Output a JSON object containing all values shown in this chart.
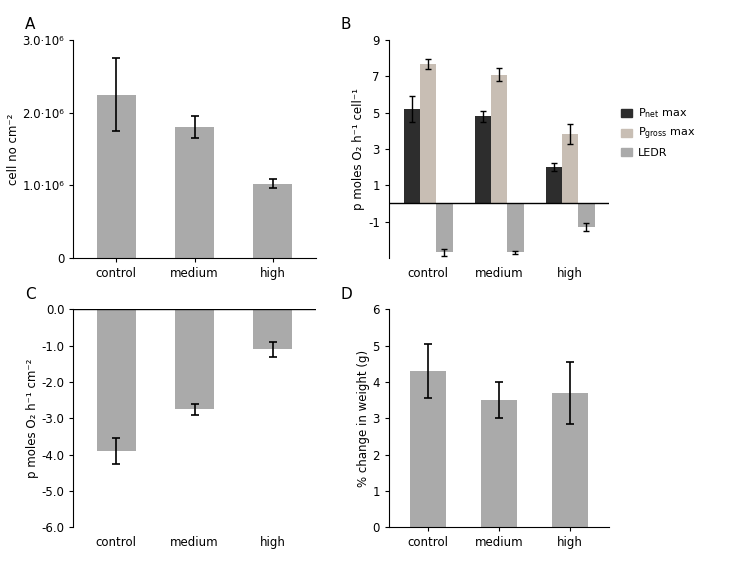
{
  "panel_A": {
    "categories": [
      "control",
      "medium",
      "high"
    ],
    "values": [
      2250000.0,
      1800000.0,
      1020000.0
    ],
    "errors": [
      500000.0,
      150000.0,
      60000.0
    ],
    "ylabel": "cell no cm⁻²",
    "ylim": [
      0,
      3000000.0
    ],
    "yticks": [
      0,
      1000000.0,
      2000000.0,
      3000000.0
    ],
    "ytick_labels": [
      "0",
      "1.0·10⁶",
      "2.0·10⁶",
      "3.0·10⁶"
    ],
    "bar_color": "#aaaaaa",
    "label": "A"
  },
  "panel_B": {
    "categories": [
      "control",
      "medium",
      "high"
    ],
    "Pnet_values": [
      5.2,
      4.8,
      2.0
    ],
    "Pnet_errors": [
      0.7,
      0.3,
      0.2
    ],
    "Pgross_values": [
      7.7,
      7.1,
      3.8
    ],
    "Pgross_errors": [
      0.28,
      0.35,
      0.55
    ],
    "LEDR_values": [
      -2.7,
      -2.7,
      -1.3
    ],
    "LEDR_errors": [
      0.2,
      0.1,
      0.2
    ],
    "Pnet_color": "#2d2d2d",
    "Pgross_color": "#c8beb4",
    "LEDR_color": "#aaaaaa",
    "ylabel": "p moles O₂ h⁻¹ cell⁻¹",
    "ylim": [
      -3,
      9
    ],
    "yticks": [
      -1,
      1,
      3,
      5,
      7,
      9
    ],
    "label": "B"
  },
  "panel_C": {
    "categories": [
      "control",
      "medium",
      "high"
    ],
    "values": [
      -3.9,
      -2.75,
      -1.1
    ],
    "errors": [
      0.35,
      0.15,
      0.2
    ],
    "ylabel": "p moles O₂ h⁻¹ cm⁻²",
    "ylim": [
      -6.0,
      0.0
    ],
    "yticks": [
      -6.0,
      -5.0,
      -4.0,
      -3.0,
      -2.0,
      -1.0,
      0.0
    ],
    "bar_color": "#aaaaaa",
    "label": "C"
  },
  "panel_D": {
    "categories": [
      "control",
      "medium",
      "high"
    ],
    "values": [
      4.3,
      3.5,
      3.7
    ],
    "errors": [
      0.75,
      0.5,
      0.85
    ],
    "ylabel": "% change in weight (g)",
    "ylim": [
      0,
      6
    ],
    "yticks": [
      0,
      1,
      2,
      3,
      4,
      5,
      6
    ],
    "bar_color": "#aaaaaa",
    "label": "D"
  },
  "figure_bg": "#ffffff",
  "bar_width": 0.5,
  "font_size": 8.5,
  "label_font_size": 11
}
